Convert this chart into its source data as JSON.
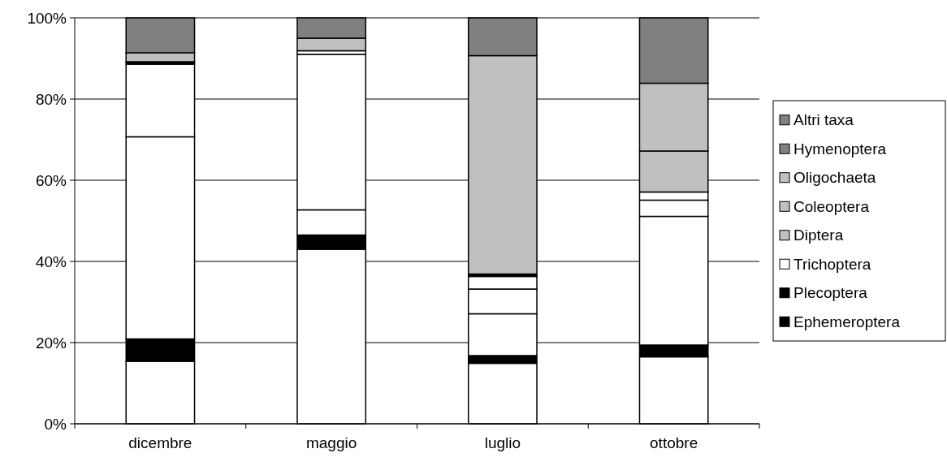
{
  "chart_data": {
    "type": "bar",
    "stacked": true,
    "categories": [
      "dicembre",
      "maggio",
      "luglio",
      "ottobre"
    ],
    "series": [
      {
        "color": "#ffffff",
        "values": [
          15.4,
          43.0,
          14.9,
          16.5
        ]
      },
      {
        "color": "#000000",
        "values": [
          5.5,
          3.5,
          1.9,
          2.9
        ]
      },
      {
        "color": "#ffffff",
        "values": [
          49.8,
          6.2,
          10.3,
          31.7
        ]
      },
      {
        "color": "#ffffff",
        "values": [
          17.9,
          38.3,
          6.1,
          4.0
        ]
      },
      {
        "color": "#ffffff",
        "values": [
          0,
          0,
          3.1,
          2.0
        ]
      },
      {
        "name": "Ephemeroptera",
        "color": "#000000",
        "values": [
          0.6,
          0,
          0.6,
          0
        ]
      },
      {
        "name": "Plecoptera",
        "color": "#000000",
        "values": [
          0,
          0,
          0,
          0
        ]
      },
      {
        "name": "Trichoptera",
        "color": "#ffffff",
        "values": [
          0,
          0.9,
          0,
          0
        ]
      },
      {
        "name": "Diptera",
        "color": "#c0c0c0",
        "values": [
          2.2,
          0,
          53.8,
          10.1
        ]
      },
      {
        "name": "Coleoptera",
        "color": "#c0c0c0",
        "values": [
          0,
          3.1,
          0,
          16.7
        ]
      },
      {
        "name": "Oligochaeta",
        "color": "#c0c0c0",
        "values": [
          0,
          0,
          0,
          0
        ]
      },
      {
        "name": "Hymenoptera",
        "color": "#808080",
        "values": [
          0,
          0,
          0,
          0
        ]
      },
      {
        "name": "Altri taxa",
        "color": "#808080",
        "values": [
          8.6,
          5.0,
          9.3,
          16.1
        ]
      }
    ],
    "ylim": [
      0,
      100
    ],
    "yticks": [
      {
        "value": 0,
        "label": "0%"
      },
      {
        "value": 20,
        "label": "20%"
      },
      {
        "value": 40,
        "label": "40%"
      },
      {
        "value": 60,
        "label": "60%"
      },
      {
        "value": 80,
        "label": "80%"
      },
      {
        "value": 100,
        "label": "100%"
      }
    ],
    "grid": "y",
    "legend": "right"
  }
}
